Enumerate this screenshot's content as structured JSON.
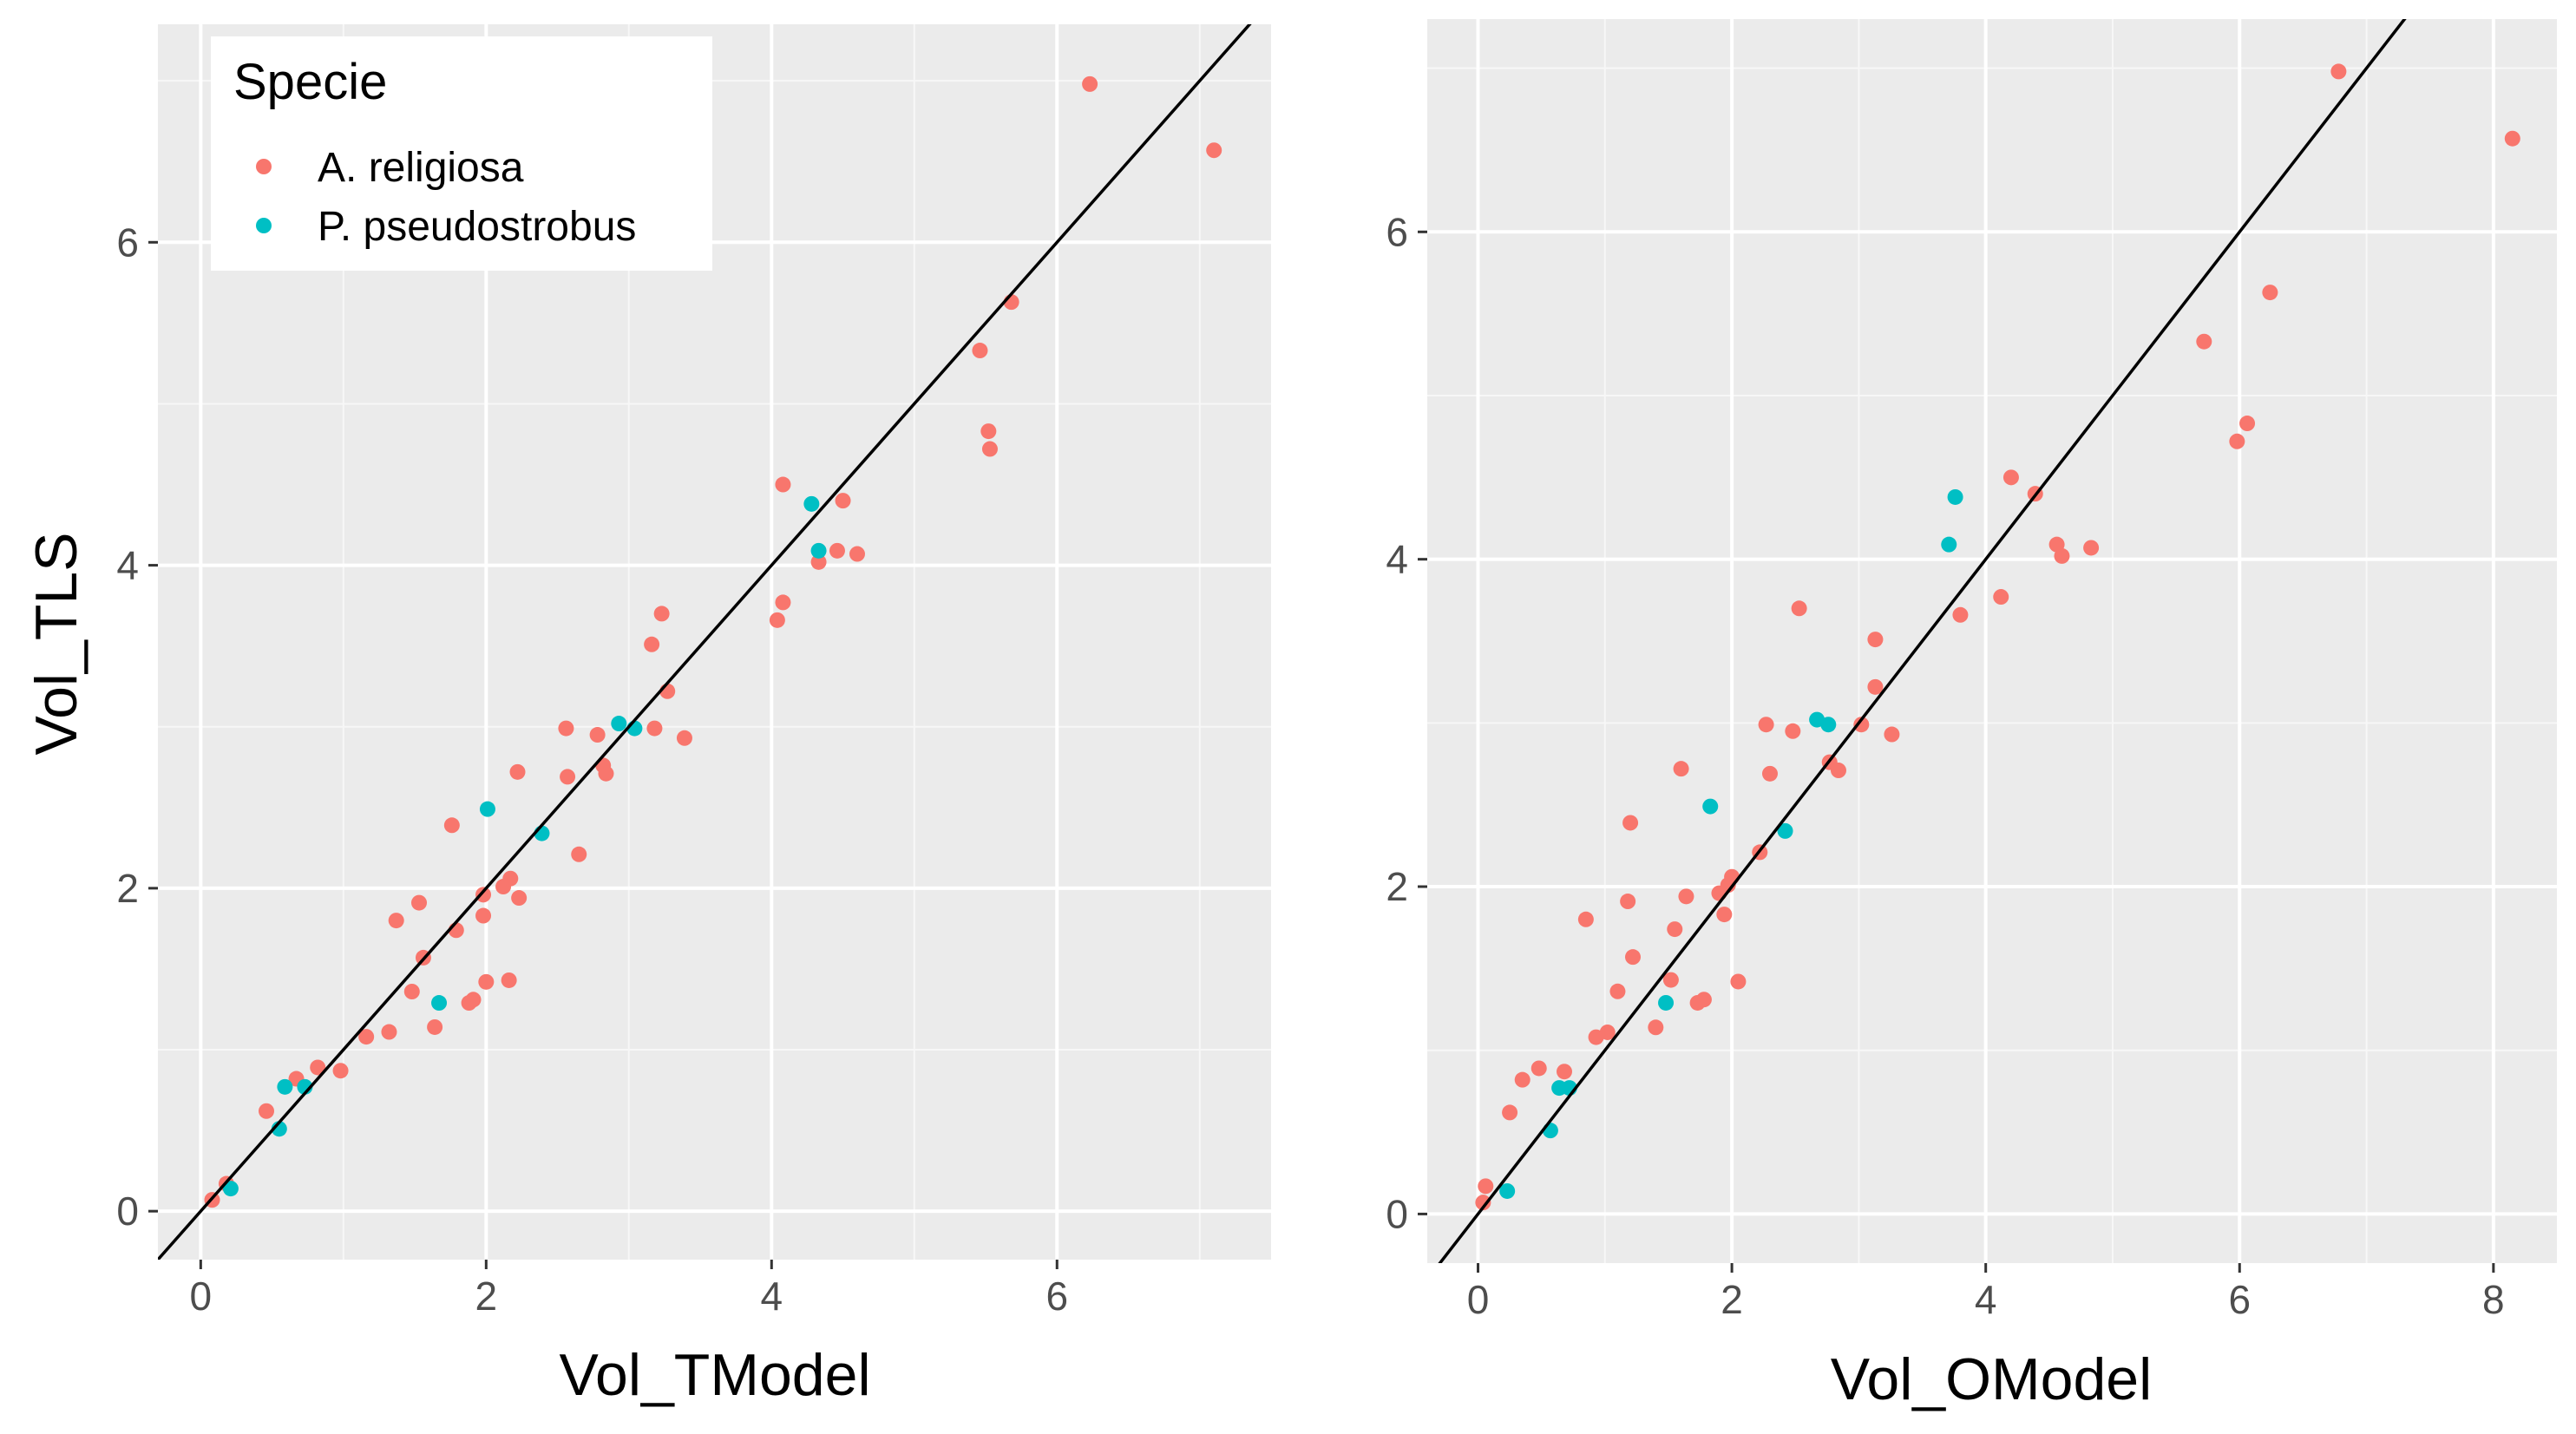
{
  "chart_data": [
    {
      "type": "scatter",
      "xlabel": "Vol_TModel",
      "ylabel": "Vol_TLS",
      "xlim": [
        -0.3,
        7.5
      ],
      "ylim": [
        -0.3,
        7.35
      ],
      "xticks": [
        0,
        2,
        4,
        6
      ],
      "yticks": [
        0,
        2,
        4,
        6
      ],
      "grid": true,
      "reference_line": {
        "slope": 1,
        "intercept": 0
      },
      "legend": {
        "title": "Specie",
        "position": "top-left",
        "entries": [
          {
            "label": "A. religiosa",
            "color": "#f8766d"
          },
          {
            "label": "P. pseudostrobus",
            "color": "#00bfc4"
          }
        ]
      },
      "series": [
        {
          "name": "A. religiosa",
          "color": "#f8766d",
          "points": [
            [
              0.08,
              0.07
            ],
            [
              0.18,
              0.17
            ],
            [
              0.46,
              0.62
            ],
            [
              0.67,
              0.82
            ],
            [
              0.82,
              0.89
            ],
            [
              0.98,
              0.87
            ],
            [
              1.16,
              1.08
            ],
            [
              1.32,
              1.11
            ],
            [
              1.37,
              1.8
            ],
            [
              1.48,
              1.36
            ],
            [
              1.53,
              1.91
            ],
            [
              1.56,
              1.57
            ],
            [
              1.64,
              1.14
            ],
            [
              1.76,
              2.39
            ],
            [
              1.79,
              1.74
            ],
            [
              1.88,
              1.29
            ],
            [
              1.91,
              1.31
            ],
            [
              1.98,
              1.83
            ],
            [
              1.98,
              1.96
            ],
            [
              2.0,
              1.42
            ],
            [
              2.12,
              2.01
            ],
            [
              2.16,
              1.43
            ],
            [
              2.17,
              2.06
            ],
            [
              2.22,
              2.72
            ],
            [
              2.23,
              1.94
            ],
            [
              2.56,
              2.99
            ],
            [
              2.57,
              2.69
            ],
            [
              2.65,
              2.21
            ],
            [
              2.78,
              2.95
            ],
            [
              2.82,
              2.76
            ],
            [
              2.84,
              2.71
            ],
            [
              3.16,
              3.51
            ],
            [
              3.18,
              2.99
            ],
            [
              3.23,
              3.7
            ],
            [
              3.27,
              3.22
            ],
            [
              3.39,
              2.93
            ],
            [
              4.04,
              3.66
            ],
            [
              4.08,
              3.77
            ],
            [
              4.08,
              4.5
            ],
            [
              4.33,
              4.02
            ],
            [
              4.46,
              4.09
            ],
            [
              4.5,
              4.4
            ],
            [
              4.6,
              4.07
            ],
            [
              5.46,
              5.33
            ],
            [
              5.52,
              4.83
            ],
            [
              5.53,
              4.72
            ],
            [
              5.68,
              5.63
            ],
            [
              6.23,
              6.98
            ],
            [
              7.1,
              6.57
            ]
          ]
        },
        {
          "name": "P. pseudostrobus",
          "color": "#00bfc4",
          "points": [
            [
              0.21,
              0.14
            ],
            [
              0.55,
              0.51
            ],
            [
              0.59,
              0.77
            ],
            [
              0.73,
              0.77
            ],
            [
              1.67,
              1.29
            ],
            [
              2.01,
              2.49
            ],
            [
              2.39,
              2.34
            ],
            [
              2.93,
              3.02
            ],
            [
              3.04,
              2.99
            ],
            [
              4.28,
              4.38
            ],
            [
              4.33,
              4.09
            ]
          ]
        }
      ]
    },
    {
      "type": "scatter",
      "xlabel": "Vol_OModel",
      "ylabel": "",
      "xlim": [
        -0.4,
        8.5
      ],
      "ylim": [
        -0.3,
        7.3
      ],
      "xticks": [
        0,
        2,
        4,
        6,
        8
      ],
      "yticks": [
        0,
        2,
        4,
        6
      ],
      "grid": true,
      "reference_line": {
        "slope": 1,
        "intercept": 0
      },
      "series": [
        {
          "name": "A. religiosa",
          "color": "#f8766d",
          "points": [
            [
              0.04,
              0.07
            ],
            [
              0.06,
              0.17
            ],
            [
              0.25,
              0.62
            ],
            [
              0.35,
              0.82
            ],
            [
              0.48,
              0.89
            ],
            [
              0.68,
              0.87
            ],
            [
              0.93,
              1.08
            ],
            [
              1.02,
              1.11
            ],
            [
              0.85,
              1.8
            ],
            [
              1.1,
              1.36
            ],
            [
              1.18,
              1.91
            ],
            [
              1.22,
              1.57
            ],
            [
              1.4,
              1.14
            ],
            [
              1.2,
              2.39
            ],
            [
              1.55,
              1.74
            ],
            [
              1.73,
              1.29
            ],
            [
              1.78,
              1.31
            ],
            [
              1.94,
              1.83
            ],
            [
              1.9,
              1.96
            ],
            [
              2.05,
              1.42
            ],
            [
              1.97,
              2.01
            ],
            [
              1.52,
              1.43
            ],
            [
              2.0,
              2.06
            ],
            [
              1.6,
              2.72
            ],
            [
              1.64,
              1.94
            ],
            [
              2.27,
              2.99
            ],
            [
              2.3,
              2.69
            ],
            [
              2.22,
              2.21
            ],
            [
              2.48,
              2.95
            ],
            [
              2.77,
              2.76
            ],
            [
              2.84,
              2.71
            ],
            [
              3.13,
              3.51
            ],
            [
              3.02,
              2.99
            ],
            [
              2.53,
              3.7
            ],
            [
              3.13,
              3.22
            ],
            [
              3.26,
              2.93
            ],
            [
              3.8,
              3.66
            ],
            [
              4.12,
              3.77
            ],
            [
              4.2,
              4.5
            ],
            [
              4.6,
              4.02
            ],
            [
              4.56,
              4.09
            ],
            [
              4.39,
              4.4
            ],
            [
              4.83,
              4.07
            ],
            [
              5.72,
              5.33
            ],
            [
              6.06,
              4.83
            ],
            [
              5.98,
              4.72
            ],
            [
              6.24,
              5.63
            ],
            [
              6.78,
              6.98
            ],
            [
              8.15,
              6.57
            ]
          ]
        },
        {
          "name": "P. pseudostrobus",
          "color": "#00bfc4",
          "points": [
            [
              0.23,
              0.14
            ],
            [
              0.57,
              0.51
            ],
            [
              0.64,
              0.77
            ],
            [
              0.72,
              0.77
            ],
            [
              1.48,
              1.29
            ],
            [
              1.83,
              2.49
            ],
            [
              2.42,
              2.34
            ],
            [
              2.67,
              3.02
            ],
            [
              2.76,
              2.99
            ],
            [
              3.76,
              4.38
            ],
            [
              3.71,
              4.09
            ]
          ]
        }
      ]
    }
  ]
}
